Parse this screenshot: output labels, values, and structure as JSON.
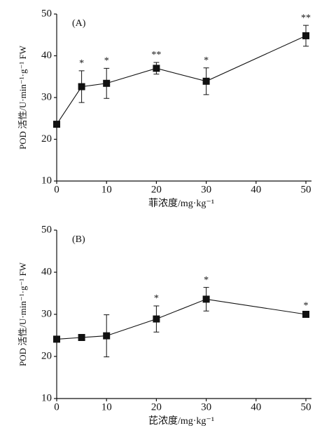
{
  "chart_data": [
    {
      "type": "line",
      "panel_label": "(A)",
      "xlabel": "菲浓度/mg·kg⁻¹",
      "ylabel": "POD 活性/U·min⁻¹·g⁻¹ FW",
      "x": [
        0,
        5,
        10,
        20,
        30,
        50
      ],
      "xlim": [
        0,
        50
      ],
      "xticks": [
        0,
        10,
        20,
        30,
        40,
        50
      ],
      "ylim": [
        10,
        50
      ],
      "yticks": [
        10,
        20,
        30,
        40,
        50
      ],
      "series": [
        {
          "color": "#111111",
          "values": [
            23.6,
            32.6,
            33.4,
            37,
            33.9,
            44.8
          ],
          "errors": [
            null,
            3.8,
            3.6,
            1.4,
            3.2,
            2.5
          ],
          "annotations": [
            null,
            "*",
            "*",
            "**",
            "*",
            "**"
          ]
        }
      ]
    },
    {
      "type": "line",
      "panel_label": "(B)",
      "xlabel": "芘浓度/mg·kg⁻¹",
      "ylabel": "POD 活性/U·min⁻¹·g⁻¹ FW",
      "x": [
        0,
        5,
        10,
        20,
        30,
        50
      ],
      "xlim": [
        0,
        50
      ],
      "xticks": [
        0,
        10,
        20,
        30,
        40,
        50
      ],
      "ylim": [
        10,
        50
      ],
      "yticks": [
        10,
        20,
        30,
        40,
        50
      ],
      "series": [
        {
          "color": "#111111",
          "values": [
            24.1,
            24.5,
            24.9,
            28.9,
            33.6,
            30
          ],
          "errors": [
            null,
            0.5,
            5,
            3.1,
            2.8,
            0.3
          ],
          "annotations": [
            null,
            null,
            null,
            "*",
            "*",
            "*"
          ]
        }
      ]
    }
  ]
}
